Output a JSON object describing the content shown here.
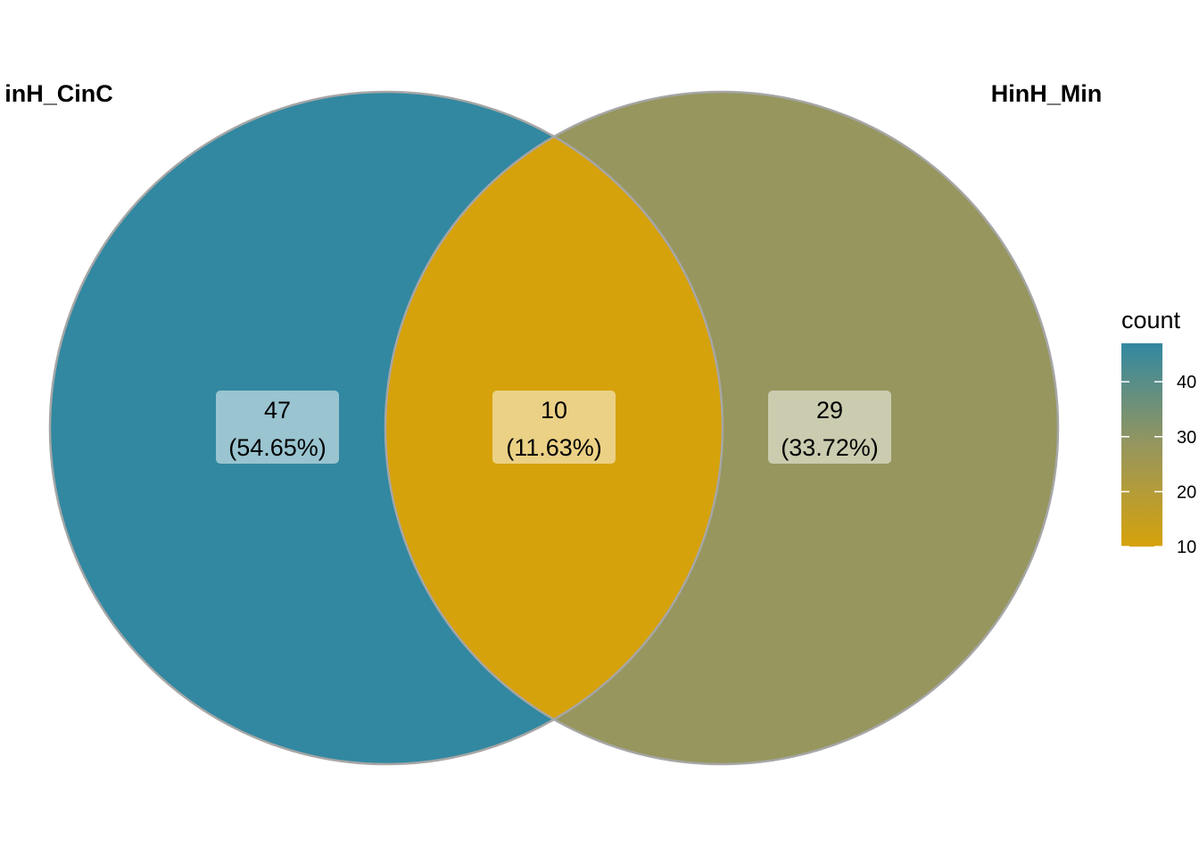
{
  "sets": [
    {
      "name": "inH_CinC"
    },
    {
      "name": "HinH_Min"
    }
  ],
  "regions": [
    {
      "id": "only_a",
      "count": "47",
      "percent": "(54.65%)",
      "color": "#3288A1"
    },
    {
      "id": "both",
      "count": "10",
      "percent": "(11.63%)",
      "color": "#D6A20B"
    },
    {
      "id": "only_b",
      "count": "29",
      "percent": "(33.72%)",
      "color": "#96965E"
    }
  ],
  "chart_data": {
    "type": "venn",
    "sets": [
      "inH_CinC",
      "HinH_Min"
    ],
    "regions": [
      {
        "sets": [
          "inH_CinC"
        ],
        "count": 47,
        "percent": 54.65
      },
      {
        "sets": [
          "inH_CinC",
          "HinH_Min"
        ],
        "count": 10,
        "percent": 11.63
      },
      {
        "sets": [
          "HinH_Min"
        ],
        "count": 29,
        "percent": 33.72
      }
    ],
    "legend": {
      "title": "count",
      "ticks": [
        "40",
        "30",
        "20",
        "10"
      ],
      "tick_values": [
        40,
        30,
        20,
        10
      ],
      "range": [
        10,
        47
      ],
      "gradient": [
        "#D6A20B",
        "#96965E",
        "#3288A1"
      ],
      "placement": "right"
    }
  },
  "colors": {
    "stroke": "#A6A6A6",
    "label_box_alpha": 0.5
  }
}
